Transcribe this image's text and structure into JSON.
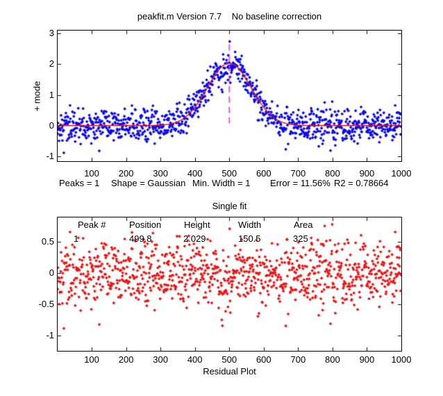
{
  "figure": {
    "background": "#ffffff"
  },
  "chart_data": [
    {
      "type": "scatter",
      "title": "peakfit.m Version 7.7    No baseline correction",
      "ylabel": "+ mode",
      "xlim": [
        1,
        1000
      ],
      "ylim": [
        -1.157,
        3.09
      ],
      "xticks": [
        100,
        200,
        300,
        400,
        500,
        600,
        700,
        800,
        900,
        1000
      ],
      "yticks": [
        3,
        2,
        1,
        0,
        -1
      ],
      "n_points": 1000,
      "noise_sigma": 0.27,
      "seed": 42,
      "marker_color": "#0808EE",
      "marker_shape": "diamond",
      "signal": "gaussian",
      "fit_curve": {
        "type": "gaussian",
        "position": 499.8,
        "height": 2.029,
        "fwhm": 150.5,
        "color": "#DD1111"
      },
      "peak_marker_line": {
        "x": 499.8,
        "y0": 0.07,
        "y1": 2.73,
        "color": "#EE22EE",
        "style": "dashed"
      },
      "stats_line": {
        "peaks": "Peaks = 1",
        "shape": "Shape = Gaussian",
        "min_width": "Min. Width = 1",
        "error": "Error = 11.56%",
        "r2": "R2 = 0.78664"
      },
      "grid": false,
      "legend": null
    },
    {
      "type": "scatter",
      "title": "Single fit",
      "xlabel": "Residual Plot",
      "xlim": [
        1,
        1000
      ],
      "ylim": [
        -1.244,
        0.889
      ],
      "xticks": [
        100,
        200,
        300,
        400,
        500,
        600,
        700,
        800,
        900,
        1000
      ],
      "yticks": [
        0.5,
        0,
        -0.5,
        -1
      ],
      "n_points": 1000,
      "noise_sigma": 0.27,
      "seed": 42,
      "marker_color": "#EE1111",
      "marker_shape": "diamond",
      "signal": "none",
      "table": {
        "headers": [
          "Peak #",
          "Position",
          "Height",
          "Width",
          "Area"
        ],
        "values": [
          "1",
          "499.8",
          "2.029",
          "150.5",
          "325"
        ]
      },
      "grid": false,
      "legend": null
    }
  ]
}
